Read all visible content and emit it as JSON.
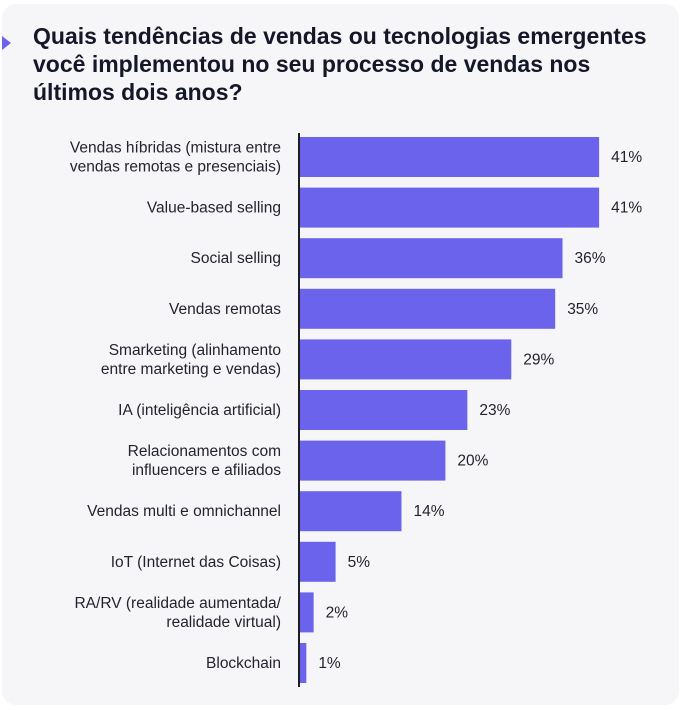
{
  "chart_data": {
    "type": "bar",
    "orientation": "horizontal",
    "title": "Quais tendências de vendas ou tecnologias emergentes você implementou no seu processo de vendas nos últimos dois anos?",
    "categories": [
      "Vendas híbridas (mistura entre\nvendas remotas e presenciais)",
      "Value-based selling",
      "Social selling",
      "Vendas remotas",
      "Smarketing (alinhamento\nentre marketing e vendas)",
      "IA (inteligência artificial)",
      "Relacionamentos com\ninfluencers e afiliados",
      "Vendas multi e omnichannel",
      "IoT (Internet das Coisas)",
      "RA/RV (realidade aumentada/\nrealidade virtual)",
      "Blockchain"
    ],
    "values": [
      41,
      41,
      36,
      35,
      29,
      23,
      20,
      14,
      5,
      2,
      1
    ],
    "value_labels": [
      "41%",
      "41%",
      "36%",
      "35%",
      "29%",
      "23%",
      "20%",
      "14%",
      "5%",
      "2%",
      "1%"
    ],
    "unit": "%",
    "bar_color": "#6c63ec",
    "axis_color": "#1c1c24",
    "text_color": "#22232e",
    "card_color": "#f6f6f8",
    "accent_color": "#6c63ec"
  }
}
